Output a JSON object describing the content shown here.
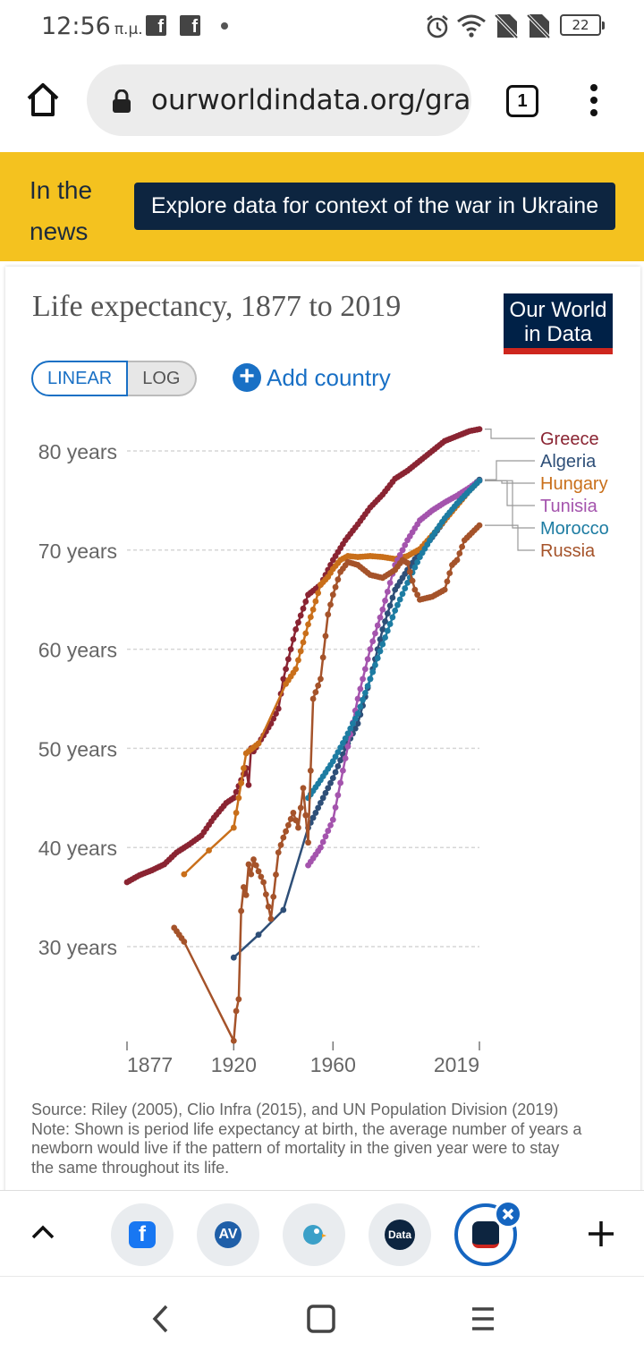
{
  "status_bar": {
    "time": "12:56",
    "ampm": "π.μ.",
    "battery": "22"
  },
  "browser": {
    "url": "ourworldindata.org/grap",
    "tab_count": "1"
  },
  "news": {
    "label": "In the news",
    "button": "Explore data for context of the war in Ukraine"
  },
  "card": {
    "title": "Life expectancy, 1877 to 2019",
    "logo_line1": "Our World",
    "logo_line2": "in Data",
    "toggle_linear": "LINEAR",
    "toggle_log": "LOG",
    "add_country": "Add country",
    "source": "Source: Riley (2005), Clio Infra (2015), and UN Population Division (2019)",
    "note": "Note: Shown is period life expectancy at birth, the average number of years a newborn would live if the pattern of mortality in the given year were to stay the same throughout its life."
  },
  "tabs": {
    "chip_av": "AV",
    "chip_data": "Data"
  },
  "chart_data": {
    "type": "line",
    "title": "Life expectancy, 1877 to 2019",
    "xlabel": "",
    "ylabel": "",
    "xlim": [
      1877,
      2019
    ],
    "ylim": [
      20,
      83
    ],
    "y_ticks": [
      30,
      40,
      50,
      60,
      70,
      80
    ],
    "y_tick_labels": [
      "30 years",
      "40 years",
      "50 years",
      "60 years",
      "70 years",
      "80 years"
    ],
    "x_ticks": [
      1877,
      1920,
      1960,
      2019
    ],
    "x_tick_labels": [
      "1877",
      "1920",
      "1960",
      "2019"
    ],
    "series": [
      {
        "name": "Greece",
        "color": "#8a2432",
        "x": [
          1877,
          1882,
          1887,
          1892,
          1897,
          1902,
          1907,
          1912,
          1917,
          1920,
          1925,
          1926,
          1927,
          1928,
          1930,
          1935,
          1938,
          1940,
          1945,
          1950,
          1955,
          1960,
          1965,
          1970,
          1975,
          1980,
          1985,
          1990,
          1995,
          2000,
          2005,
          2010,
          2015,
          2019
        ],
        "y": [
          36.5,
          37.2,
          37.7,
          38.3,
          39.5,
          40.3,
          41.2,
          43,
          44.5,
          45,
          48,
          46.3,
          50,
          49.7,
          50.5,
          52.5,
          54,
          57,
          62,
          65.5,
          66.5,
          69,
          71,
          72.6,
          74.3,
          75.6,
          77.2,
          78,
          79,
          80,
          81,
          81.5,
          82,
          82.2
        ]
      },
      {
        "name": "Algeria",
        "color": "#2e4f78",
        "x": [
          1920,
          1930,
          1940,
          1950,
          1955,
          1960,
          1965,
          1970,
          1975,
          1980,
          1985,
          1990,
          1995,
          2000,
          2005,
          2010,
          2015,
          2019
        ],
        "y": [
          28.9,
          31.2,
          33.7,
          42,
          44.5,
          47,
          50,
          52.5,
          57,
          62,
          66,
          68,
          69.8,
          71.3,
          73,
          74.7,
          76.2,
          77.1
        ]
      },
      {
        "name": "Hungary",
        "color": "#c96f1a",
        "x": [
          1900,
          1910,
          1920,
          1925,
          1930,
          1941,
          1945,
          1950,
          1952,
          1955,
          1958,
          1960,
          1963,
          1966,
          1970,
          1975,
          1980,
          1985,
          1990,
          1995,
          2000,
          2005,
          2010,
          2015,
          2019
        ],
        "y": [
          37.3,
          39.7,
          42,
          49.5,
          50.5,
          56.5,
          58,
          62.5,
          64,
          66.5,
          67.3,
          68.1,
          69,
          69.4,
          69.3,
          69.4,
          69.3,
          69.1,
          69.4,
          70.1,
          71.5,
          73,
          74.5,
          76,
          77
        ]
      },
      {
        "name": "Tunisia",
        "color": "#a454ad",
        "x": [
          1950,
          1955,
          1960,
          1965,
          1970,
          1975,
          1980,
          1985,
          1990,
          1995,
          2000,
          2005,
          2010,
          2015,
          2019
        ],
        "y": [
          38.2,
          40,
          42.8,
          49,
          55,
          60,
          64,
          68.5,
          71,
          73,
          74,
          74.8,
          75.5,
          76.3,
          77
        ]
      },
      {
        "name": "Morocco",
        "color": "#1d7ca2",
        "x": [
          1950,
          1955,
          1960,
          1965,
          1970,
          1975,
          1980,
          1985,
          1990,
          1995,
          2000,
          2005,
          2010,
          2015,
          2019
        ],
        "y": [
          45,
          46.8,
          48.7,
          51,
          53.5,
          57,
          60.5,
          63.9,
          66.7,
          69.3,
          71.4,
          73.2,
          74.7,
          76,
          77
        ]
      },
      {
        "name": "Russia",
        "color": "#a5532a",
        "x": [
          1896,
          1900,
          1920,
          1921,
          1922,
          1923,
          1924,
          1925,
          1926,
          1927,
          1928,
          1930,
          1932,
          1935,
          1938,
          1940,
          1944,
          1946,
          1948,
          1950,
          1952,
          1955,
          1958,
          1960,
          1963,
          1966,
          1970,
          1975,
          1980,
          1985,
          1988,
          1990,
          1993,
          1995,
          2000,
          2005,
          2008,
          2010,
          2013,
          2015,
          2019
        ],
        "y": [
          31.9,
          30.5,
          20.5,
          23.5,
          24.7,
          33.6,
          36,
          35.2,
          38.3,
          37.3,
          38.8,
          37.6,
          36.5,
          32.8,
          39.5,
          41,
          43.5,
          42,
          46,
          40.5,
          55,
          57,
          63.5,
          65.5,
          67.8,
          68.8,
          68.5,
          67.5,
          67.2,
          68,
          69,
          68.7,
          66,
          65,
          65.3,
          66,
          68.5,
          69,
          71,
          71.5,
          72.5
        ]
      }
    ]
  }
}
